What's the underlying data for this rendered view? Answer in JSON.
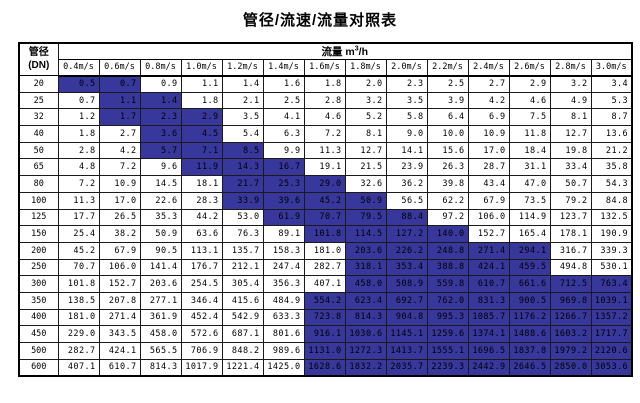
{
  "title": "管径/流速/流量对照表",
  "table": {
    "corner_header": {
      "line1": "管径",
      "line2": "(DN)"
    },
    "flow_header": {
      "prefix": "流量 m",
      "sup": "3",
      "suffix": "/h"
    },
    "velocity_headers": [
      "0.4m/s",
      "0.6m/s",
      "0.8m/s",
      "1.0m/s",
      "1.2m/s",
      "1.4m/s",
      "1.6m/s",
      "1.8m/s",
      "2.0m/s",
      "2.2m/s",
      "2.4m/s",
      "2.6m/s",
      "2.8m/s",
      "3.0m/s"
    ],
    "colors": {
      "highlight_bg": "#37379c",
      "border": "#000000",
      "text": "#000000"
    },
    "rows": [
      {
        "dn": "20",
        "values": [
          "0.5",
          "0.7",
          "0.9",
          "1.1",
          "1.4",
          "1.6",
          "1.8",
          "2.0",
          "2.3",
          "2.5",
          "2.7",
          "2.9",
          "3.2",
          "3.4"
        ],
        "highlight": [
          0,
          1
        ]
      },
      {
        "dn": "25",
        "values": [
          "0.7",
          "1.1",
          "1.4",
          "1.8",
          "2.1",
          "2.5",
          "2.8",
          "3.2",
          "3.5",
          "3.9",
          "4.2",
          "4.6",
          "4.9",
          "5.3"
        ],
        "highlight": [
          1,
          2
        ]
      },
      {
        "dn": "32",
        "values": [
          "1.2",
          "1.7",
          "2.3",
          "2.9",
          "3.5",
          "4.1",
          "4.6",
          "5.2",
          "5.8",
          "6.4",
          "6.9",
          "7.5",
          "8.1",
          "8.7"
        ],
        "highlight": [
          1,
          3
        ]
      },
      {
        "dn": "40",
        "values": [
          "1.8",
          "2.7",
          "3.6",
          "4.5",
          "5.4",
          "6.3",
          "7.2",
          "8.1",
          "9.0",
          "10.0",
          "10.9",
          "11.8",
          "12.7",
          "13.6"
        ],
        "highlight": [
          2,
          3
        ]
      },
      {
        "dn": "50",
        "values": [
          "2.8",
          "4.2",
          "5.7",
          "7.1",
          "8.5",
          "9.9",
          "11.3",
          "12.7",
          "14.1",
          "15.6",
          "17.0",
          "18.4",
          "19.8",
          "21.2"
        ],
        "highlight": [
          2,
          4
        ]
      },
      {
        "dn": "65",
        "values": [
          "4.8",
          "7.2",
          "9.6",
          "11.9",
          "14.3",
          "16.7",
          "19.1",
          "21.5",
          "23.9",
          "26.3",
          "28.7",
          "31.1",
          "33.4",
          "35.8"
        ],
        "highlight": [
          3,
          5
        ]
      },
      {
        "dn": "80",
        "values": [
          "7.2",
          "10.9",
          "14.5",
          "18.1",
          "21.7",
          "25.3",
          "29.0",
          "32.6",
          "36.2",
          "39.8",
          "43.4",
          "47.0",
          "50.7",
          "54.3"
        ],
        "highlight": [
          4,
          6
        ]
      },
      {
        "dn": "100",
        "values": [
          "11.3",
          "17.0",
          "22.6",
          "28.3",
          "33.9",
          "39.6",
          "45.2",
          "50.9",
          "56.5",
          "62.2",
          "67.9",
          "73.5",
          "79.2",
          "84.8"
        ],
        "highlight": [
          4,
          7
        ]
      },
      {
        "dn": "125",
        "values": [
          "17.7",
          "26.5",
          "35.3",
          "44.2",
          "53.0",
          "61.9",
          "70.7",
          "79.5",
          "88.4",
          "97.2",
          "106.0",
          "114.9",
          "123.7",
          "132.5"
        ],
        "highlight": [
          5,
          8
        ]
      },
      {
        "dn": "150",
        "values": [
          "25.4",
          "38.2",
          "50.9",
          "63.6",
          "76.3",
          "89.1",
          "101.8",
          "114.5",
          "127.2",
          "140.0",
          "152.7",
          "165.4",
          "178.1",
          "190.9"
        ],
        "highlight": [
          6,
          9
        ]
      },
      {
        "dn": "200",
        "values": [
          "45.2",
          "67.9",
          "90.5",
          "113.1",
          "135.7",
          "158.3",
          "181.0",
          "203.6",
          "226.2",
          "248.8",
          "271.4",
          "294.1",
          "316.7",
          "339.3"
        ],
        "highlight": [
          7,
          11
        ]
      },
      {
        "dn": "250",
        "values": [
          "70.7",
          "106.0",
          "141.4",
          "176.7",
          "212.1",
          "247.4",
          "282.7",
          "318.1",
          "353.4",
          "388.8",
          "424.1",
          "459.5",
          "494.8",
          "530.1"
        ],
        "highlight": [
          7,
          11
        ]
      },
      {
        "dn": "300",
        "values": [
          "101.8",
          "152.7",
          "203.6",
          "254.5",
          "305.4",
          "356.3",
          "407.1",
          "458.0",
          "508.9",
          "559.8",
          "610.7",
          "661.6",
          "712.5",
          "763.4"
        ],
        "highlight": [
          7,
          13
        ]
      },
      {
        "dn": "350",
        "values": [
          "138.5",
          "207.8",
          "277.1",
          "346.4",
          "415.6",
          "484.9",
          "554.2",
          "623.4",
          "692.7",
          "762.0",
          "831.3",
          "900.5",
          "969.8",
          "1039.1"
        ],
        "highlight": [
          6,
          13
        ]
      },
      {
        "dn": "400",
        "values": [
          "181.0",
          "271.4",
          "361.9",
          "452.4",
          "542.9",
          "633.3",
          "723.8",
          "814.3",
          "904.8",
          "995.3",
          "1085.7",
          "1176.2",
          "1266.7",
          "1357.2"
        ],
        "highlight": [
          6,
          13
        ]
      },
      {
        "dn": "450",
        "values": [
          "229.0",
          "343.5",
          "458.0",
          "572.6",
          "687.1",
          "801.6",
          "916.1",
          "1030.6",
          "1145.1",
          "1259.6",
          "1374.1",
          "1488.6",
          "1603.2",
          "1717.7"
        ],
        "highlight": [
          6,
          13
        ]
      },
      {
        "dn": "500",
        "values": [
          "282.7",
          "424.1",
          "565.5",
          "706.9",
          "848.2",
          "989.6",
          "1131.0",
          "1272.3",
          "1413.7",
          "1555.1",
          "1696.5",
          "1837.8",
          "1979.2",
          "2120.6"
        ],
        "highlight": [
          6,
          13
        ]
      },
      {
        "dn": "600",
        "values": [
          "407.1",
          "610.7",
          "814.3",
          "1017.9",
          "1221.4",
          "1425.0",
          "1628.6",
          "1832.2",
          "2035.7",
          "2239.3",
          "2442.9",
          "2646.5",
          "2850.0",
          "3053.6"
        ],
        "highlight": [
          6,
          13
        ]
      }
    ]
  }
}
